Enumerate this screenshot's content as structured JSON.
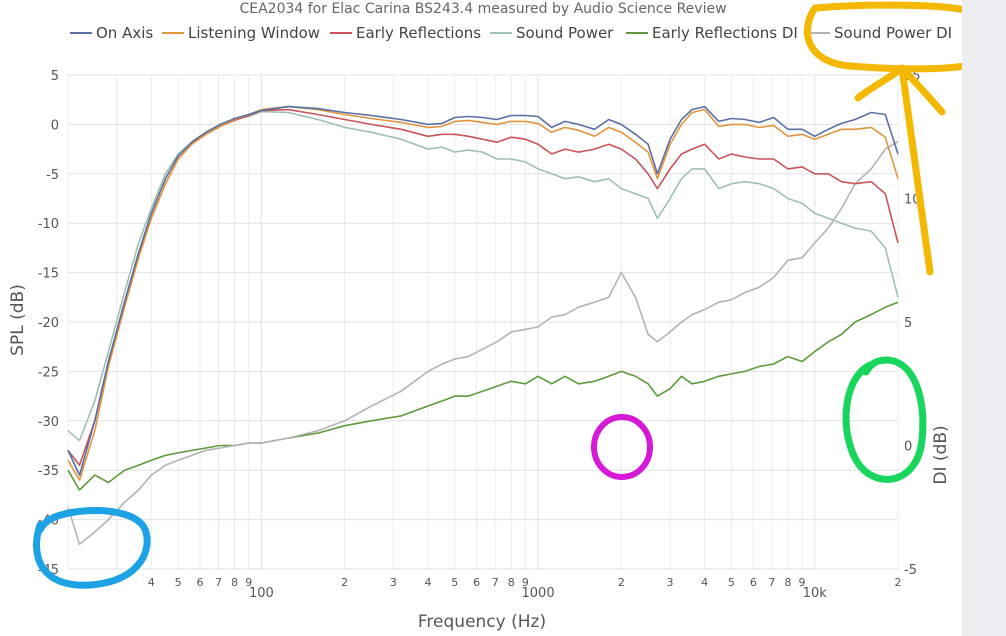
{
  "chart_data": {
    "type": "line",
    "title": "CEA2034 for Elac Carina BS243.4 measured by Audio Science Review",
    "xlabel": "Frequency (Hz)",
    "ylabel": "SPL (dB)",
    "y2label": "DI (dB)",
    "xscale": "log",
    "xlim": [
      20,
      20000
    ],
    "ylim": [
      -45,
      5
    ],
    "y2lim": [
      -5,
      15
    ],
    "legend_position": "top",
    "x_tick_labels": [
      {
        "v": 40,
        "t": "4"
      },
      {
        "v": 50,
        "t": "5"
      },
      {
        "v": 60,
        "t": "6"
      },
      {
        "v": 70,
        "t": "7"
      },
      {
        "v": 80,
        "t": "8"
      },
      {
        "v": 90,
        "t": "9"
      },
      {
        "v": 100,
        "t": "100"
      },
      {
        "v": 200,
        "t": "2"
      },
      {
        "v": 300,
        "t": "3"
      },
      {
        "v": 400,
        "t": "4"
      },
      {
        "v": 500,
        "t": "5"
      },
      {
        "v": 600,
        "t": "6"
      },
      {
        "v": 700,
        "t": "7"
      },
      {
        "v": 800,
        "t": "8"
      },
      {
        "v": 900,
        "t": "9"
      },
      {
        "v": 1000,
        "t": "1000"
      },
      {
        "v": 2000,
        "t": "2"
      },
      {
        "v": 3000,
        "t": "3"
      },
      {
        "v": 4000,
        "t": "4"
      },
      {
        "v": 5000,
        "t": "5"
      },
      {
        "v": 6000,
        "t": "6"
      },
      {
        "v": 7000,
        "t": "7"
      },
      {
        "v": 8000,
        "t": "8"
      },
      {
        "v": 9000,
        "t": "9"
      },
      {
        "v": 10000,
        "t": "10k"
      },
      {
        "v": 20000,
        "t": "2"
      }
    ],
    "y_tick_labels": [
      "5",
      "0",
      "-5",
      "-10",
      "-15",
      "-20",
      "-25",
      "-30",
      "-35",
      "-40",
      "-45"
    ],
    "y2_tick_labels": [
      "15",
      "10",
      "5",
      "0",
      "-5"
    ],
    "series": [
      {
        "name": "On Axis",
        "axis": "y",
        "color": "#5a6fa3",
        "x": [
          20,
          22,
          25,
          28,
          32,
          36,
          40,
          45,
          50,
          56,
          63,
          71,
          80,
          90,
          100,
          125,
          160,
          200,
          250,
          320,
          400,
          450,
          500,
          560,
          630,
          710,
          800,
          900,
          1000,
          1120,
          1250,
          1400,
          1600,
          1800,
          2000,
          2250,
          2500,
          2700,
          3000,
          3300,
          3600,
          4000,
          4500,
          5000,
          5600,
          6300,
          7100,
          8000,
          9000,
          10000,
          11200,
          12500,
          14000,
          16000,
          18000,
          20000
        ],
        "y": [
          -33,
          -35.5,
          -30,
          -24,
          -18,
          -13,
          -9,
          -5.5,
          -3.2,
          -1.8,
          -0.8,
          0,
          0.6,
          1,
          1.4,
          1.8,
          1.6,
          1.2,
          0.9,
          0.5,
          0,
          0.1,
          0.7,
          0.8,
          0.7,
          0.5,
          0.9,
          0.9,
          0.8,
          -0.3,
          0.3,
          0,
          -0.5,
          0.5,
          0,
          -1,
          -2,
          -5,
          -1.5,
          0.5,
          1.5,
          1.8,
          0.3,
          0.6,
          0.5,
          0.2,
          0.7,
          -0.5,
          -0.5,
          -1.2,
          -0.5,
          0.1,
          0.5,
          1.2,
          1,
          -3
        ]
      },
      {
        "name": "Listening Window",
        "axis": "y",
        "color": "#e0953e",
        "x": [
          20,
          22,
          25,
          28,
          32,
          36,
          40,
          45,
          50,
          56,
          63,
          71,
          80,
          90,
          100,
          125,
          160,
          200,
          250,
          320,
          400,
          450,
          500,
          560,
          630,
          710,
          800,
          900,
          1000,
          1120,
          1250,
          1400,
          1600,
          1800,
          2000,
          2250,
          2500,
          2700,
          3000,
          3300,
          3600,
          4000,
          4500,
          5000,
          5600,
          6300,
          7100,
          8000,
          9000,
          10000,
          11200,
          12500,
          14000,
          16000,
          18000,
          20000
        ],
        "y": [
          -34,
          -36,
          -31,
          -24.5,
          -18.5,
          -13.5,
          -9.5,
          -6,
          -3.5,
          -2,
          -1,
          -0.2,
          0.5,
          1,
          1.5,
          1.8,
          1.5,
          1,
          0.6,
          0.2,
          -0.3,
          -0.2,
          0.3,
          0.4,
          0.2,
          0,
          0.3,
          0.3,
          0.1,
          -0.8,
          -0.3,
          -0.6,
          -1.2,
          -0.3,
          -0.8,
          -1.8,
          -2.8,
          -5.5,
          -2,
          0,
          1.2,
          1.5,
          -0.2,
          0,
          0,
          -0.3,
          -0.1,
          -1.2,
          -1,
          -1.5,
          -1,
          -0.5,
          -0.5,
          -0.3,
          -1.3,
          -5.5
        ]
      },
      {
        "name": "Early Reflections",
        "axis": "y",
        "color": "#c9545a",
        "x": [
          20,
          22,
          25,
          28,
          32,
          36,
          40,
          45,
          50,
          56,
          63,
          71,
          80,
          90,
          100,
          125,
          160,
          200,
          250,
          320,
          400,
          450,
          500,
          560,
          630,
          710,
          800,
          900,
          1000,
          1120,
          1250,
          1400,
          1600,
          1800,
          2000,
          2250,
          2500,
          2700,
          3000,
          3300,
          3600,
          4000,
          4500,
          5000,
          5600,
          6300,
          7100,
          8000,
          9000,
          10000,
          11200,
          12500,
          14000,
          16000,
          18000,
          20000
        ],
        "y": [
          -33,
          -34.5,
          -30,
          -24,
          -18,
          -13,
          -9.5,
          -6,
          -3.5,
          -2,
          -1,
          -0.2,
          0.4,
          0.9,
          1.4,
          1.5,
          1,
          0.5,
          0,
          -0.5,
          -1.2,
          -1,
          -1,
          -1.2,
          -1.5,
          -1.8,
          -1.3,
          -1.5,
          -2,
          -3,
          -2.5,
          -2.8,
          -2.5,
          -2,
          -2.5,
          -3.5,
          -5,
          -6.5,
          -4.5,
          -3,
          -2.5,
          -2,
          -3.5,
          -3,
          -3.3,
          -3.5,
          -3.5,
          -4.5,
          -4.3,
          -5,
          -5,
          -5.8,
          -6,
          -5.8,
          -7,
          -12
        ]
      },
      {
        "name": "Sound Power",
        "axis": "y",
        "color": "#9fbfb2",
        "x": [
          20,
          22,
          25,
          28,
          32,
          36,
          40,
          45,
          50,
          56,
          63,
          71,
          80,
          90,
          100,
          125,
          160,
          200,
          250,
          320,
          400,
          450,
          500,
          560,
          630,
          710,
          800,
          900,
          1000,
          1120,
          1250,
          1400,
          1600,
          1800,
          2000,
          2250,
          2500,
          2700,
          3000,
          3300,
          3600,
          4000,
          4500,
          5000,
          5600,
          6300,
          7100,
          8000,
          9000,
          10000,
          11200,
          12500,
          14000,
          16000,
          18000,
          20000
        ],
        "y": [
          -31,
          -32,
          -28,
          -23,
          -17,
          -12,
          -8.5,
          -5,
          -3,
          -1.8,
          -0.8,
          0,
          0.5,
          0.8,
          1.3,
          1.2,
          0.5,
          -0.3,
          -0.8,
          -1.5,
          -2.5,
          -2.3,
          -2.8,
          -2.6,
          -2.8,
          -3.5,
          -3.5,
          -3.8,
          -4.5,
          -5,
          -5.5,
          -5.3,
          -5.8,
          -5.5,
          -6.5,
          -7,
          -7.5,
          -9.5,
          -7.5,
          -5.5,
          -4.5,
          -4.5,
          -6.5,
          -6,
          -5.8,
          -6,
          -6.5,
          -7.5,
          -8,
          -9,
          -9.5,
          -10,
          -10.5,
          -10.8,
          -12.5,
          -17.5
        ]
      },
      {
        "name": "Early Reflections DI",
        "axis": "y2",
        "color": "#5e9a3c",
        "x": [
          20,
          22,
          25,
          28,
          32,
          36,
          40,
          45,
          50,
          56,
          63,
          71,
          80,
          90,
          100,
          125,
          160,
          200,
          250,
          320,
          400,
          450,
          500,
          560,
          630,
          710,
          800,
          900,
          1000,
          1120,
          1250,
          1400,
          1600,
          1800,
          2000,
          2250,
          2500,
          2700,
          3000,
          3300,
          3600,
          4000,
          4500,
          5000,
          5600,
          6300,
          7100,
          8000,
          9000,
          10000,
          11200,
          12500,
          14000,
          16000,
          18000,
          20000
        ],
        "y": [
          -1,
          -1.8,
          -1.2,
          -1.5,
          -1,
          -0.8,
          -0.6,
          -0.4,
          -0.3,
          -0.2,
          -0.1,
          0,
          0,
          0.1,
          0.1,
          0.3,
          0.5,
          0.8,
          1,
          1.2,
          1.6,
          1.8,
          2,
          2,
          2.2,
          2.4,
          2.6,
          2.5,
          2.8,
          2.5,
          2.8,
          2.5,
          2.6,
          2.8,
          3,
          2.8,
          2.5,
          2,
          2.3,
          2.8,
          2.5,
          2.6,
          2.8,
          2.9,
          3,
          3.2,
          3.3,
          3.6,
          3.4,
          3.8,
          4.2,
          4.5,
          5,
          5.3,
          5.6,
          5.8
        ]
      },
      {
        "name": "Sound Power DI",
        "axis": "y2",
        "color": "#b3b3b3",
        "x": [
          20,
          22,
          25,
          28,
          32,
          36,
          40,
          45,
          50,
          56,
          63,
          71,
          80,
          90,
          100,
          125,
          160,
          200,
          250,
          320,
          400,
          450,
          500,
          560,
          630,
          710,
          800,
          900,
          1000,
          1120,
          1250,
          1400,
          1600,
          1800,
          2000,
          2250,
          2500,
          2700,
          3000,
          3300,
          3600,
          4000,
          4500,
          5000,
          5600,
          6300,
          7100,
          8000,
          9000,
          10000,
          11200,
          12500,
          14000,
          16000,
          18000,
          20000
        ],
        "y": [
          -2.5,
          -4,
          -3.5,
          -3,
          -2.3,
          -1.8,
          -1.2,
          -0.8,
          -0.6,
          -0.4,
          -0.2,
          -0.1,
          0,
          0.1,
          0.1,
          0.3,
          0.6,
          1,
          1.6,
          2.2,
          3,
          3.3,
          3.5,
          3.6,
          3.9,
          4.2,
          4.6,
          4.7,
          4.8,
          5.2,
          5.3,
          5.6,
          5.8,
          6,
          7,
          6,
          4.5,
          4.2,
          4.6,
          5,
          5.3,
          5.5,
          5.8,
          5.9,
          6.2,
          6.4,
          6.8,
          7.5,
          7.6,
          8.2,
          8.8,
          9.6,
          10.6,
          11.2,
          12,
          12.3
        ]
      }
    ]
  },
  "annotations": [
    {
      "shape": "ellipse",
      "color": "#f5b800",
      "target": "Sound Power DI"
    },
    {
      "shape": "ellipse",
      "color": "#1ea2e6"
    },
    {
      "shape": "ellipse",
      "color": "#d41ad6"
    },
    {
      "shape": "ellipse",
      "color": "#18d55b"
    }
  ]
}
